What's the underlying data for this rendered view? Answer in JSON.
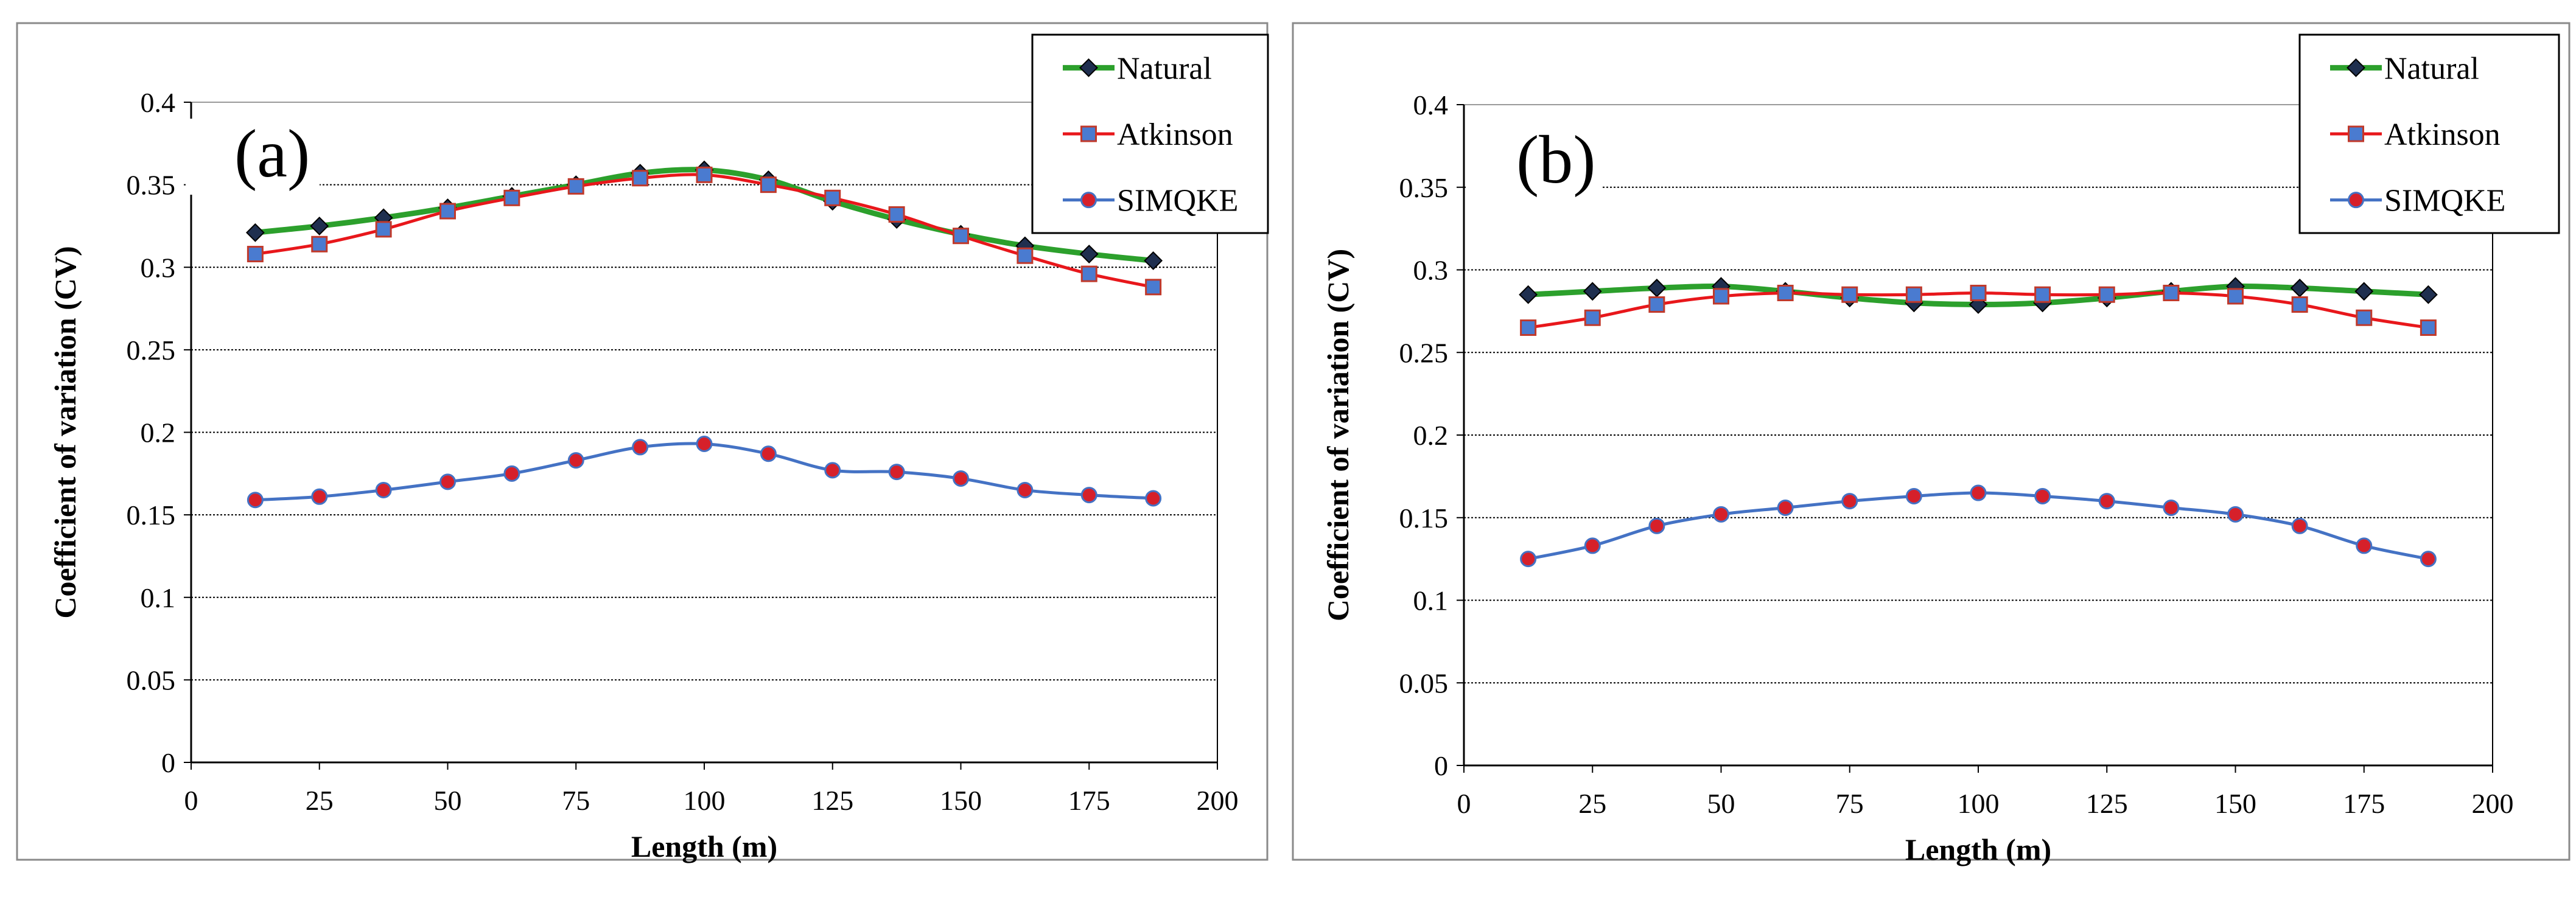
{
  "chart_data": [
    {
      "type": "line",
      "panel_label": "(a)",
      "title": "",
      "xlabel": "Length (m)",
      "ylabel": "Coefficient of variation (CV)",
      "xlim": [
        0,
        200
      ],
      "ylim": [
        0,
        0.4
      ],
      "xticks": [
        "0",
        "25",
        "50",
        "75",
        "100",
        "125",
        "150",
        "175",
        "200"
      ],
      "yticks": [
        "0",
        "0.05",
        "0.1",
        "0.15",
        "0.2",
        "0.25",
        "0.3",
        "0.35",
        "0.4"
      ],
      "grid": "horizontal dotted",
      "legend_position": "top-right",
      "x": [
        12.5,
        25,
        37.5,
        50,
        62.5,
        75,
        87.5,
        100,
        112.5,
        125,
        137.5,
        150,
        162.5,
        175,
        187.5
      ],
      "series": [
        {
          "name": "Natural",
          "line_color": "#2ca02c",
          "marker": "diamond",
          "marker_color": "#1f2f4f",
          "values": [
            0.321,
            0.325,
            0.33,
            0.336,
            0.343,
            0.35,
            0.357,
            0.359,
            0.353,
            0.34,
            0.329,
            0.32,
            0.313,
            0.308,
            0.304
          ]
        },
        {
          "name": "Atkinson",
          "line_color": "#e8171b",
          "marker": "square",
          "marker_color": "#4a7bd0",
          "values": [
            0.308,
            0.314,
            0.323,
            0.334,
            0.342,
            0.349,
            0.354,
            0.356,
            0.35,
            0.342,
            0.332,
            0.319,
            0.307,
            0.296,
            0.288
          ]
        },
        {
          "name": "SIMQKE",
          "line_color": "#4472c4",
          "marker": "circle",
          "marker_color": "#d6202a",
          "values": [
            0.159,
            0.161,
            0.165,
            0.17,
            0.175,
            0.183,
            0.191,
            0.193,
            0.187,
            0.177,
            0.176,
            0.172,
            0.165,
            0.162,
            0.16
          ]
        }
      ]
    },
    {
      "type": "line",
      "panel_label": "(b)",
      "title": "",
      "xlabel": "Length (m)",
      "ylabel": "Coefficient of variation (CV)",
      "xlim": [
        0,
        200
      ],
      "ylim": [
        0,
        0.4
      ],
      "xticks": [
        "0",
        "25",
        "50",
        "75",
        "100",
        "125",
        "150",
        "175",
        "200"
      ],
      "yticks": [
        "0",
        "0.05",
        "0.1",
        "0.15",
        "0.2",
        "0.25",
        "0.3",
        "0.35",
        "0.4"
      ],
      "grid": "horizontal dotted",
      "legend_position": "top-right",
      "x": [
        12.5,
        25,
        37.5,
        50,
        62.5,
        75,
        87.5,
        100,
        112.5,
        125,
        137.5,
        150,
        162.5,
        175,
        187.5
      ],
      "series": [
        {
          "name": "Natural",
          "line_color": "#2ca02c",
          "marker": "diamond",
          "marker_color": "#1f2f4f",
          "values": [
            0.285,
            0.287,
            0.289,
            0.29,
            0.287,
            0.283,
            0.28,
            0.279,
            0.28,
            0.283,
            0.287,
            0.29,
            0.289,
            0.287,
            0.285
          ]
        },
        {
          "name": "Atkinson",
          "line_color": "#e8171b",
          "marker": "square",
          "marker_color": "#4a7bd0",
          "values": [
            0.265,
            0.271,
            0.279,
            0.284,
            0.286,
            0.285,
            0.285,
            0.286,
            0.285,
            0.285,
            0.286,
            0.284,
            0.279,
            0.271,
            0.265
          ]
        },
        {
          "name": "SIMQKE",
          "line_color": "#4472c4",
          "marker": "circle",
          "marker_color": "#d6202a",
          "values": [
            0.125,
            0.133,
            0.145,
            0.152,
            0.156,
            0.16,
            0.163,
            0.165,
            0.163,
            0.16,
            0.156,
            0.152,
            0.145,
            0.133,
            0.125
          ]
        }
      ]
    }
  ]
}
